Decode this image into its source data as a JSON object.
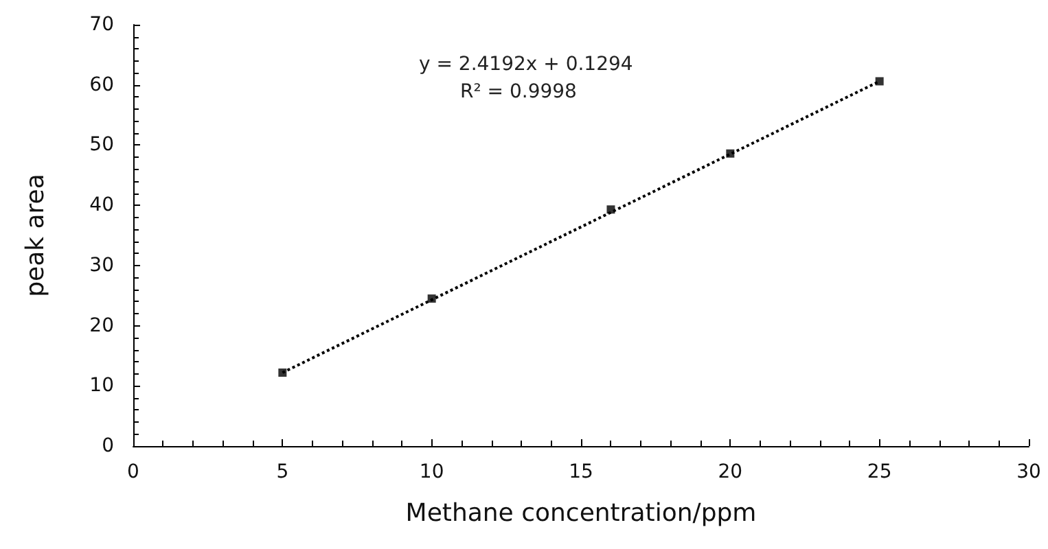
{
  "chart_data": {
    "type": "scatter",
    "xlabel": "Methane concentration/ppm",
    "ylabel": "peak area",
    "xlim": [
      0,
      30
    ],
    "xticks": [
      0,
      5,
      10,
      15,
      20,
      25,
      30
    ],
    "ylim": [
      0,
      70
    ],
    "yticks": [
      0,
      10,
      20,
      30,
      40,
      50,
      60,
      70
    ],
    "marker": "square",
    "series": [
      {
        "color": "#000000",
        "x": [
          5,
          10,
          16,
          20,
          25
        ],
        "values": [
          12.2,
          24.5,
          39.3,
          48.6,
          60.6
        ]
      },
      {
        "type": "line",
        "color": "#000000",
        "line_style": "dotted",
        "marker": "none",
        "x": [
          5,
          25
        ],
        "values": [
          12.2,
          60.6
        ]
      }
    ],
    "annotations": [
      "y = 2.4192x + 0.1294",
      "R² = 0.9998"
    ]
  }
}
